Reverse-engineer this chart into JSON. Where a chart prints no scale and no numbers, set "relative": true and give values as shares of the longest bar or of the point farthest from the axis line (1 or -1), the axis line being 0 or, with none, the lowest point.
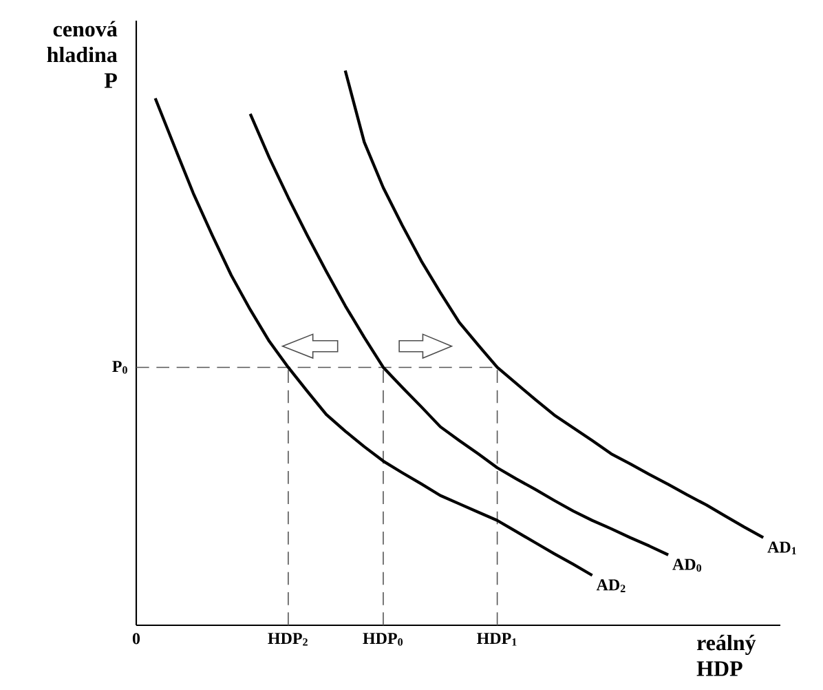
{
  "chart_data": {
    "type": "line",
    "relative": true,
    "xlabel": "reálný HDP",
    "ylabel": "cenová hladina P",
    "categories": [
      "0",
      null,
      null,
      null,
      null,
      null,
      null,
      null,
      "HDP$_{2}$",
      null,
      null,
      null,
      null,
      "HDP$_{0}$",
      null,
      null,
      null,
      null,
      null,
      "HDP$_{1}$",
      null,
      null,
      null,
      null,
      null,
      null,
      null,
      null,
      null,
      null,
      null,
      null,
      null,
      null
    ],
    "series": [
      {
        "name": "AD$_{2}$",
        "color": "#000000",
        "values": [
          null,
          0.95,
          0.864,
          0.779,
          0.703,
          0.631,
          0.569,
          0.512,
          0.465,
          0.422,
          0.38,
          0.35,
          0.322,
          0.296,
          0.275,
          0.255,
          0.234,
          0.219,
          0.204,
          0.189,
          0.169,
          0.149,
          0.129,
          0.11,
          0.09,
          null,
          null,
          null,
          null,
          null,
          null,
          null,
          null,
          null
        ]
      },
      {
        "name": "AD$_{0}$",
        "color": "#000000",
        "values": [
          null,
          null,
          null,
          null,
          null,
          null,
          0.922,
          0.843,
          0.771,
          0.703,
          0.638,
          0.576,
          0.519,
          0.465,
          0.429,
          0.394,
          0.358,
          0.333,
          0.309,
          0.284,
          0.264,
          0.245,
          0.225,
          0.206,
          0.189,
          0.174,
          0.158,
          0.143,
          0.127,
          null,
          null,
          null,
          null,
          null
        ]
      },
      {
        "name": "AD$_{1}$",
        "color": "#000000",
        "values": [
          null,
          null,
          null,
          null,
          null,
          null,
          null,
          null,
          null,
          null,
          null,
          1.0,
          0.871,
          0.789,
          0.721,
          0.657,
          0.6,
          0.546,
          0.505,
          0.465,
          0.436,
          0.407,
          0.379,
          0.356,
          0.333,
          0.309,
          0.291,
          0.272,
          0.254,
          0.235,
          0.217,
          0.197,
          0.177,
          0.158
        ]
      }
    ],
    "ref_lines": [
      {
        "axis": "y",
        "value": 0.465,
        "label": "P$_{0}$",
        "color": "#555555",
        "line_style": "dashed"
      },
      {
        "axis": "x",
        "value": "HDP$_{2}$",
        "color": "#555555",
        "line_style": "dashed"
      },
      {
        "axis": "x",
        "value": "HDP$_{0}$",
        "color": "#555555",
        "line_style": "dashed"
      },
      {
        "axis": "x",
        "value": "HDP$_{1}$",
        "color": "#555555",
        "line_style": "dashed"
      }
    ]
  }
}
